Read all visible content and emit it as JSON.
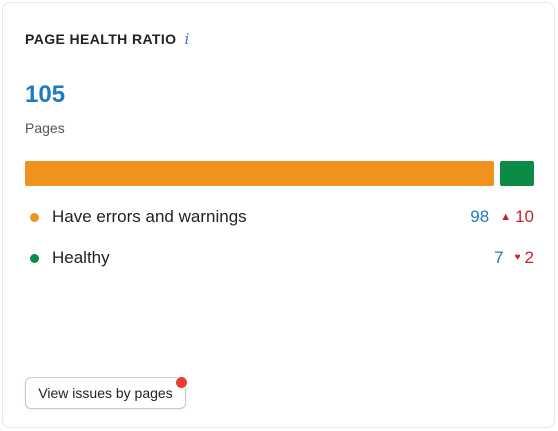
{
  "widget": {
    "title": "PAGE HEALTH RATIO",
    "info_icon": "i",
    "total": "105",
    "total_label": "Pages"
  },
  "bar": {
    "segments": [
      {
        "name": "errors",
        "value": 98,
        "color": "#f0921e"
      },
      {
        "name": "healthy",
        "value": 7,
        "color": "#0a8c47"
      }
    ]
  },
  "legend": [
    {
      "label": "Have errors and warnings",
      "count": "98",
      "delta": "10",
      "delta_direction": "up",
      "color": "#f0921e"
    },
    {
      "label": "Healthy",
      "count": "7",
      "delta": "2",
      "delta_direction": "down",
      "color": "#0a8c47"
    }
  ],
  "button": {
    "label": "View issues by pages",
    "notification_color": "#e63d2f"
  },
  "colors": {
    "link": "#1f7ac3",
    "negative": "#c8232c"
  }
}
